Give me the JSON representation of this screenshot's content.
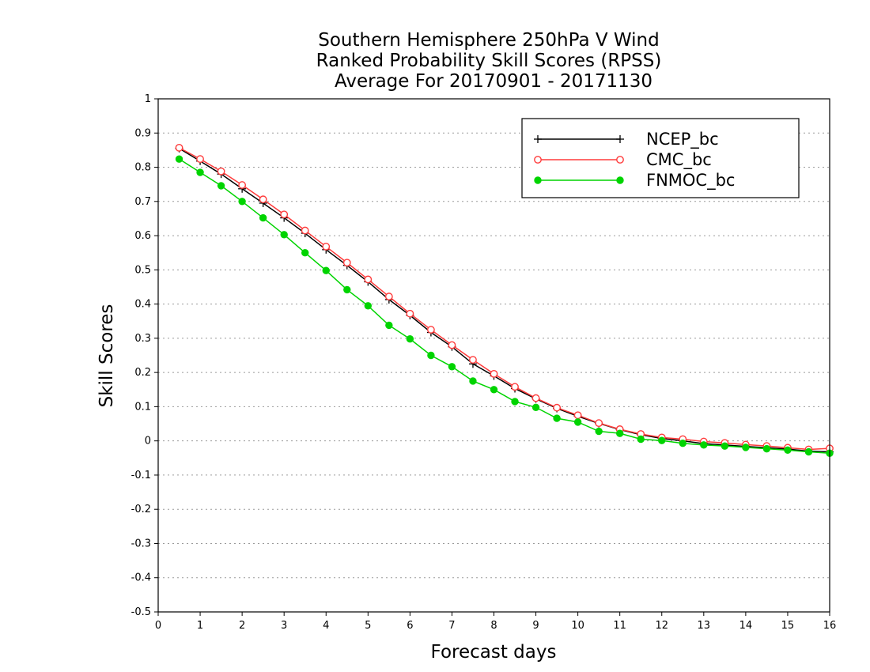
{
  "chart_data": {
    "type": "line",
    "title_lines": [
      "Southern Hemisphere 250hPa V Wind",
      "Ranked Probability Skill Scores (RPSS)",
      "Average For 20170901 - 20171130"
    ],
    "xlabel": "Forecast days",
    "ylabel": "Skill Scores",
    "xlim": [
      0,
      16
    ],
    "ylim": [
      -0.5,
      1
    ],
    "x_ticks": [
      "0",
      "1",
      "2",
      "3",
      "4",
      "5",
      "6",
      "7",
      "8",
      "9",
      "10",
      "11",
      "12",
      "13",
      "14",
      "15",
      "16"
    ],
    "y_ticks": [
      "1",
      "0.9",
      "0.8",
      "0.7",
      "0.6",
      "0.5",
      "0.4",
      "0.3",
      "0.2",
      "0.1",
      "0",
      "-0.1",
      "-0.2",
      "-0.3",
      "-0.4",
      "-0.5"
    ],
    "grid": true,
    "legend_position": "top-right",
    "x": [
      0.5,
      1,
      1.5,
      2,
      2.5,
      3,
      3.5,
      4,
      4.5,
      5,
      5.5,
      6,
      6.5,
      7,
      7.5,
      8,
      8.5,
      9,
      9.5,
      10,
      10.5,
      11,
      11.5,
      12,
      12.5,
      13,
      13.5,
      14,
      14.5,
      15,
      15.5,
      16
    ],
    "series": [
      {
        "name": "NCEP_bc",
        "color": "#000000",
        "marker": "plus",
        "values": [
          0.855,
          0.818,
          0.78,
          0.737,
          0.695,
          0.652,
          0.607,
          0.559,
          0.513,
          0.465,
          0.413,
          0.367,
          0.317,
          0.275,
          0.225,
          0.19,
          0.153,
          0.123,
          0.095,
          0.072,
          0.051,
          0.033,
          0.018,
          0.007,
          0.0,
          -0.008,
          -0.012,
          -0.016,
          -0.02,
          -0.024,
          -0.03,
          -0.032
        ]
      },
      {
        "name": "CMC_bc",
        "color": "#ff3b3b",
        "marker": "open-circle",
        "values": [
          0.857,
          0.824,
          0.788,
          0.748,
          0.706,
          0.662,
          0.615,
          0.568,
          0.521,
          0.472,
          0.422,
          0.372,
          0.325,
          0.28,
          0.237,
          0.196,
          0.158,
          0.125,
          0.097,
          0.075,
          0.052,
          0.034,
          0.02,
          0.01,
          0.005,
          -0.002,
          -0.006,
          -0.011,
          -0.015,
          -0.02,
          -0.025,
          -0.022
        ]
      },
      {
        "name": "FNMOC_bc",
        "color": "#00d400",
        "marker": "filled-circle",
        "values": [
          0.824,
          0.785,
          0.746,
          0.7,
          0.652,
          0.603,
          0.55,
          0.498,
          0.442,
          0.395,
          0.338,
          0.298,
          0.25,
          0.217,
          0.175,
          0.15,
          0.115,
          0.098,
          0.066,
          0.055,
          0.028,
          0.022,
          0.005,
          0.001,
          -0.007,
          -0.012,
          -0.015,
          -0.019,
          -0.023,
          -0.027,
          -0.032,
          -0.036
        ]
      }
    ]
  }
}
